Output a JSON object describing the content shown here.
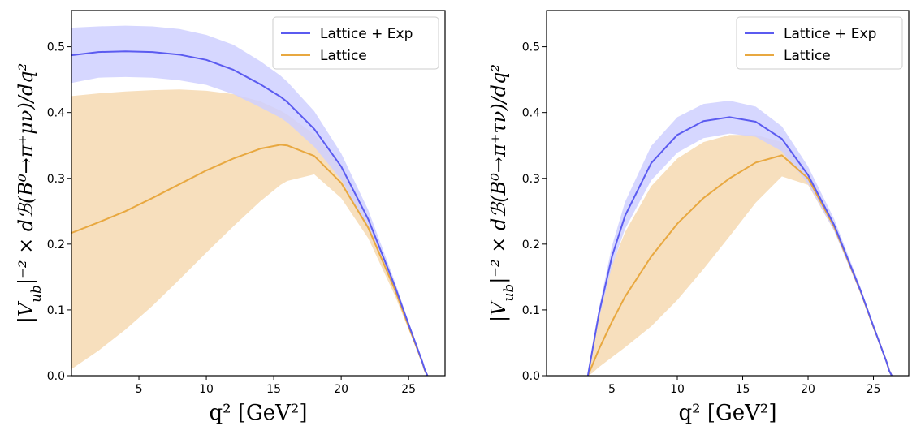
{
  "figure": {
    "colors": {
      "exp": "#5b5bf0",
      "exp_band": "#cfd0ff",
      "lat": "#e8a840",
      "lat_band": "#f7dfbd"
    }
  },
  "chart_data": [
    {
      "type": "line",
      "xlabel": "q² [GeV²]",
      "ylabel": "|V_ub|⁻² × dℬ(B⁰→π⁺μν)/dq²",
      "xlim": [
        0.0,
        27.7
      ],
      "ylim": [
        0.0,
        0.555
      ],
      "xticks": [
        5,
        10,
        15,
        20,
        25
      ],
      "yticks": [
        0.0,
        0.1,
        0.2,
        0.3,
        0.4,
        0.5
      ],
      "x": [
        0.0,
        2,
        4,
        6,
        8,
        10,
        12,
        14,
        15.5,
        16,
        18,
        20,
        22,
        24,
        25,
        25.5,
        26,
        26.2,
        26.4
      ],
      "legend_position": "upper right",
      "grid": false,
      "series": [
        {
          "name": "Lattice + Exp",
          "color": "#5b5bf0",
          "values": [
            0.487,
            0.492,
            0.493,
            0.492,
            0.488,
            0.48,
            0.465,
            0.443,
            0.424,
            0.416,
            0.375,
            0.318,
            0.238,
            0.135,
            0.078,
            0.05,
            0.022,
            0.009,
            0.0
          ],
          "band_upper": [
            0.529,
            0.531,
            0.532,
            0.531,
            0.527,
            0.518,
            0.503,
            0.478,
            0.456,
            0.447,
            0.402,
            0.338,
            0.252,
            0.142,
            0.082,
            0.053,
            0.024,
            0.01,
            0.0
          ],
          "band_lower": [
            0.445,
            0.453,
            0.454,
            0.453,
            0.449,
            0.442,
            0.428,
            0.408,
            0.392,
            0.385,
            0.348,
            0.298,
            0.224,
            0.128,
            0.074,
            0.048,
            0.02,
            0.008,
            0.0
          ]
        },
        {
          "name": "Lattice",
          "color": "#e8a840",
          "values": [
            0.217,
            0.233,
            0.25,
            0.27,
            0.291,
            0.312,
            0.33,
            0.345,
            0.351,
            0.35,
            0.334,
            0.293,
            0.225,
            0.13,
            0.075,
            0.048,
            0.021,
            0.008,
            0.0
          ],
          "band_upper": [
            0.425,
            0.429,
            0.432,
            0.434,
            0.435,
            0.433,
            0.428,
            0.417,
            0.403,
            0.397,
            0.367,
            0.318,
            0.241,
            0.137,
            0.079,
            0.05,
            0.022,
            0.009,
            0.0
          ],
          "band_lower": [
            0.01,
            0.038,
            0.07,
            0.106,
            0.146,
            0.187,
            0.227,
            0.265,
            0.29,
            0.296,
            0.306,
            0.27,
            0.209,
            0.121,
            0.07,
            0.045,
            0.019,
            0.007,
            0.0
          ]
        }
      ]
    },
    {
      "type": "line",
      "xlabel": "q² [GeV²]",
      "ylabel": "|V_ub|⁻² × dℬ(B⁰→π⁺τν)/dq²",
      "xlim": [
        0.0,
        27.7
      ],
      "ylim": [
        0.0,
        0.555
      ],
      "xticks": [
        5,
        10,
        15,
        20,
        25
      ],
      "yticks": [
        0.0,
        0.1,
        0.2,
        0.3,
        0.4,
        0.5
      ],
      "x": [
        3.16,
        3.5,
        4,
        5,
        6,
        8,
        10,
        12,
        14,
        16,
        18,
        20,
        22,
        24,
        25,
        25.5,
        26,
        26.2,
        26.4
      ],
      "legend_position": "upper right",
      "grid": false,
      "series": [
        {
          "name": "Lattice + Exp",
          "color": "#5b5bf0",
          "values": [
            0.0,
            0.038,
            0.094,
            0.181,
            0.243,
            0.323,
            0.366,
            0.387,
            0.393,
            0.386,
            0.36,
            0.305,
            0.229,
            0.13,
            0.075,
            0.048,
            0.021,
            0.008,
            0.0
          ],
          "band_upper": [
            0.0,
            0.042,
            0.102,
            0.197,
            0.264,
            0.349,
            0.393,
            0.413,
            0.418,
            0.409,
            0.379,
            0.318,
            0.238,
            0.135,
            0.078,
            0.05,
            0.022,
            0.009,
            0.0
          ],
          "band_lower": [
            0.0,
            0.034,
            0.086,
            0.166,
            0.223,
            0.297,
            0.339,
            0.361,
            0.368,
            0.363,
            0.341,
            0.292,
            0.22,
            0.125,
            0.072,
            0.046,
            0.02,
            0.008,
            0.0
          ]
        },
        {
          "name": "Lattice",
          "color": "#e8a840",
          "values": [
            0.0,
            0.016,
            0.04,
            0.082,
            0.12,
            0.181,
            0.231,
            0.27,
            0.3,
            0.324,
            0.335,
            0.3,
            0.226,
            0.129,
            0.074,
            0.048,
            0.021,
            0.008,
            0.0
          ],
          "band_upper": [
            0.0,
            0.046,
            0.099,
            0.168,
            0.218,
            0.288,
            0.33,
            0.355,
            0.366,
            0.366,
            0.355,
            0.31,
            0.232,
            0.132,
            0.076,
            0.049,
            0.021,
            0.008,
            0.0
          ],
          "band_lower": [
            0.0,
            0.004,
            0.013,
            0.028,
            0.043,
            0.075,
            0.115,
            0.162,
            0.212,
            0.263,
            0.303,
            0.29,
            0.22,
            0.126,
            0.072,
            0.046,
            0.02,
            0.008,
            0.0
          ]
        }
      ]
    }
  ]
}
